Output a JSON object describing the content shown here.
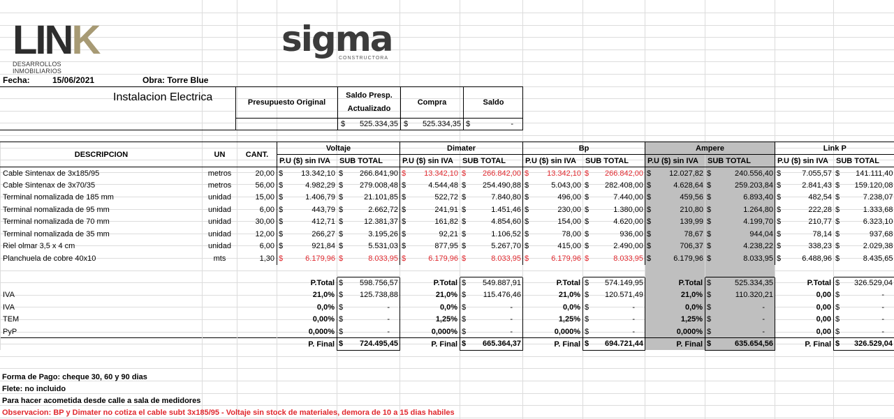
{
  "logos": {
    "link_main": "LIN",
    "link_k": "K",
    "link_sub": "DESARROLLOS INMOBILIARIOS",
    "sigma_main": "sigma",
    "sigma_sub": "CONSTRUCTORA"
  },
  "header": {
    "fecha_label": "Fecha:",
    "fecha_value": "15/06/2021",
    "obra_label": "Obra: Torre Blue",
    "section_title": "Instalacion  Electrica",
    "col_presupuesto": "Presupuesto Original",
    "col_saldo_presp_1": "Saldo Presp.",
    "col_saldo_presp_2": "Actualizado",
    "col_compra": "Compra",
    "col_saldo": "Saldo",
    "saldo_presp_value": "525.334,35",
    "compra_value": "525.334,35",
    "saldo_value": "-",
    "currency": "$"
  },
  "table": {
    "col_descripcion": "DESCRIPCION",
    "col_un": "UN",
    "col_cant": "CANT.",
    "providers": [
      "Voltaje",
      "Dimater",
      "Bp",
      "Ampere",
      "Link P"
    ],
    "col_pu": "P.U ($) sin IVA",
    "col_subtotal": "SUB TOTAL",
    "rows": [
      {
        "desc": "Cable Sintenax de 3x185/95",
        "un": "metros",
        "cant": "20,00",
        "vals": [
          [
            "13.342,10",
            "266.841,90"
          ],
          [
            "13.342,10",
            "266.842,00"
          ],
          [
            "13.342,10",
            "266.842,00"
          ],
          [
            "12.027,82",
            "240.556,40"
          ],
          [
            "7.055,57",
            "141.111,40"
          ]
        ],
        "red": [
          false,
          true,
          true,
          false,
          false
        ]
      },
      {
        "desc": "Cable Sintenax de 3x70/35",
        "un": "metros",
        "cant": "56,00",
        "vals": [
          [
            "4.982,29",
            "279.008,48"
          ],
          [
            "4.544,48",
            "254.490,88"
          ],
          [
            "5.043,00",
            "282.408,00"
          ],
          [
            "4.628,64",
            "259.203,84"
          ],
          [
            "2.841,43",
            "159.120,08"
          ]
        ],
        "red": [
          false,
          false,
          false,
          false,
          false
        ]
      },
      {
        "desc": "Terminal nomalizada de 185 mm",
        "un": "unidad",
        "cant": "15,00",
        "vals": [
          [
            "1.406,79",
            "21.101,85"
          ],
          [
            "522,72",
            "7.840,80"
          ],
          [
            "496,00",
            "7.440,00"
          ],
          [
            "459,56",
            "6.893,40"
          ],
          [
            "482,54",
            "7.238,07"
          ]
        ],
        "red": [
          false,
          false,
          false,
          false,
          false
        ]
      },
      {
        "desc": "Terminal nomalizada de 95 mm",
        "un": "unidad",
        "cant": "6,00",
        "vals": [
          [
            "443,79",
            "2.662,72"
          ],
          [
            "241,91",
            "1.451,46"
          ],
          [
            "230,00",
            "1.380,00"
          ],
          [
            "210,80",
            "1.264,80"
          ],
          [
            "222,28",
            "1.333,68"
          ]
        ],
        "red": [
          false,
          false,
          false,
          false,
          false
        ]
      },
      {
        "desc": "Terminal nomalizada de 70 mm",
        "un": "unidad",
        "cant": "30,00",
        "vals": [
          [
            "412,71",
            "12.381,37"
          ],
          [
            "161,82",
            "4.854,60"
          ],
          [
            "154,00",
            "4.620,00"
          ],
          [
            "139,99",
            "4.199,70"
          ],
          [
            "210,77",
            "6.323,10"
          ]
        ],
        "red": [
          false,
          false,
          false,
          false,
          false
        ]
      },
      {
        "desc": "Terminal nomalizada de 35 mm",
        "un": "unidad",
        "cant": "12,00",
        "vals": [
          [
            "266,27",
            "3.195,26"
          ],
          [
            "92,21",
            "1.106,52"
          ],
          [
            "78,00",
            "936,00"
          ],
          [
            "78,67",
            "944,04"
          ],
          [
            "78,14",
            "937,68"
          ]
        ],
        "red": [
          false,
          false,
          false,
          false,
          false
        ]
      },
      {
        "desc": "Riel olmar 3,5 x 4 cm",
        "un": "unidad",
        "cant": "6,00",
        "vals": [
          [
            "921,84",
            "5.531,03"
          ],
          [
            "877,95",
            "5.267,70"
          ],
          [
            "415,00",
            "2.490,00"
          ],
          [
            "706,37",
            "4.238,22"
          ],
          [
            "338,23",
            "2.029,38"
          ]
        ],
        "red": [
          false,
          false,
          false,
          false,
          false
        ]
      },
      {
        "desc": "Planchuela de cobre 40x10",
        "un": "mts",
        "cant": "1,30",
        "vals": [
          [
            "6.179,96",
            "8.033,95"
          ],
          [
            "6.179,96",
            "8.033,95"
          ],
          [
            "6.179,96",
            "8.033,95"
          ],
          [
            "6.179,96",
            "8.033,95"
          ],
          [
            "6.488,96",
            "8.435,65"
          ]
        ],
        "red": [
          true,
          true,
          true,
          false,
          false
        ]
      }
    ],
    "ptotal_label": "P.Total",
    "ptotals": [
      "598.756,57",
      "549.887,91",
      "574.149,95",
      "525.334,35",
      "326.529,04"
    ],
    "taxes": [
      {
        "label": "IVA",
        "pcts": [
          "21,0%",
          "21,0%",
          "21,0%",
          "21,0%",
          "0,00"
        ],
        "vals": [
          "125.738,88",
          "115.476,46",
          "120.571,49",
          "110.320,21",
          "-"
        ]
      },
      {
        "label": "IVA",
        "pcts": [
          "0,0%",
          "0,0%",
          "0,0%",
          "0,0%",
          "0,00"
        ],
        "vals": [
          "-",
          "-",
          "-",
          "-",
          "-"
        ]
      },
      {
        "label": "TEM",
        "pcts": [
          "0,00%",
          "1,25%",
          "1,25%",
          "1,25%",
          "0,00"
        ],
        "vals": [
          "-",
          "-",
          "-",
          "-",
          "-"
        ]
      },
      {
        "label": "PyP",
        "pcts": [
          "0,000%",
          "0,000%",
          "0,000%",
          "0,000%",
          "0,00"
        ],
        "vals": [
          "-",
          "-",
          "-",
          "-",
          "-"
        ]
      }
    ],
    "pfinal_label": "P. Final",
    "pfinals": [
      "724.495,45",
      "665.364,37",
      "694.721,44",
      "635.654,56",
      "326.529,04"
    ]
  },
  "notes": {
    "forma_pago": "Forma de Pago: cheque 30, 60 y 90 dias",
    "flete": "Flete: no incluido",
    "acometida": "Para hacer acometida  desde calle a sala de medidores",
    "observacion": "Observacion: BP y Dimater no cotiza el cable subt 3x185/95 - Voltaje sin stock de materiales, demora de 10 a 15 dias habiles"
  }
}
